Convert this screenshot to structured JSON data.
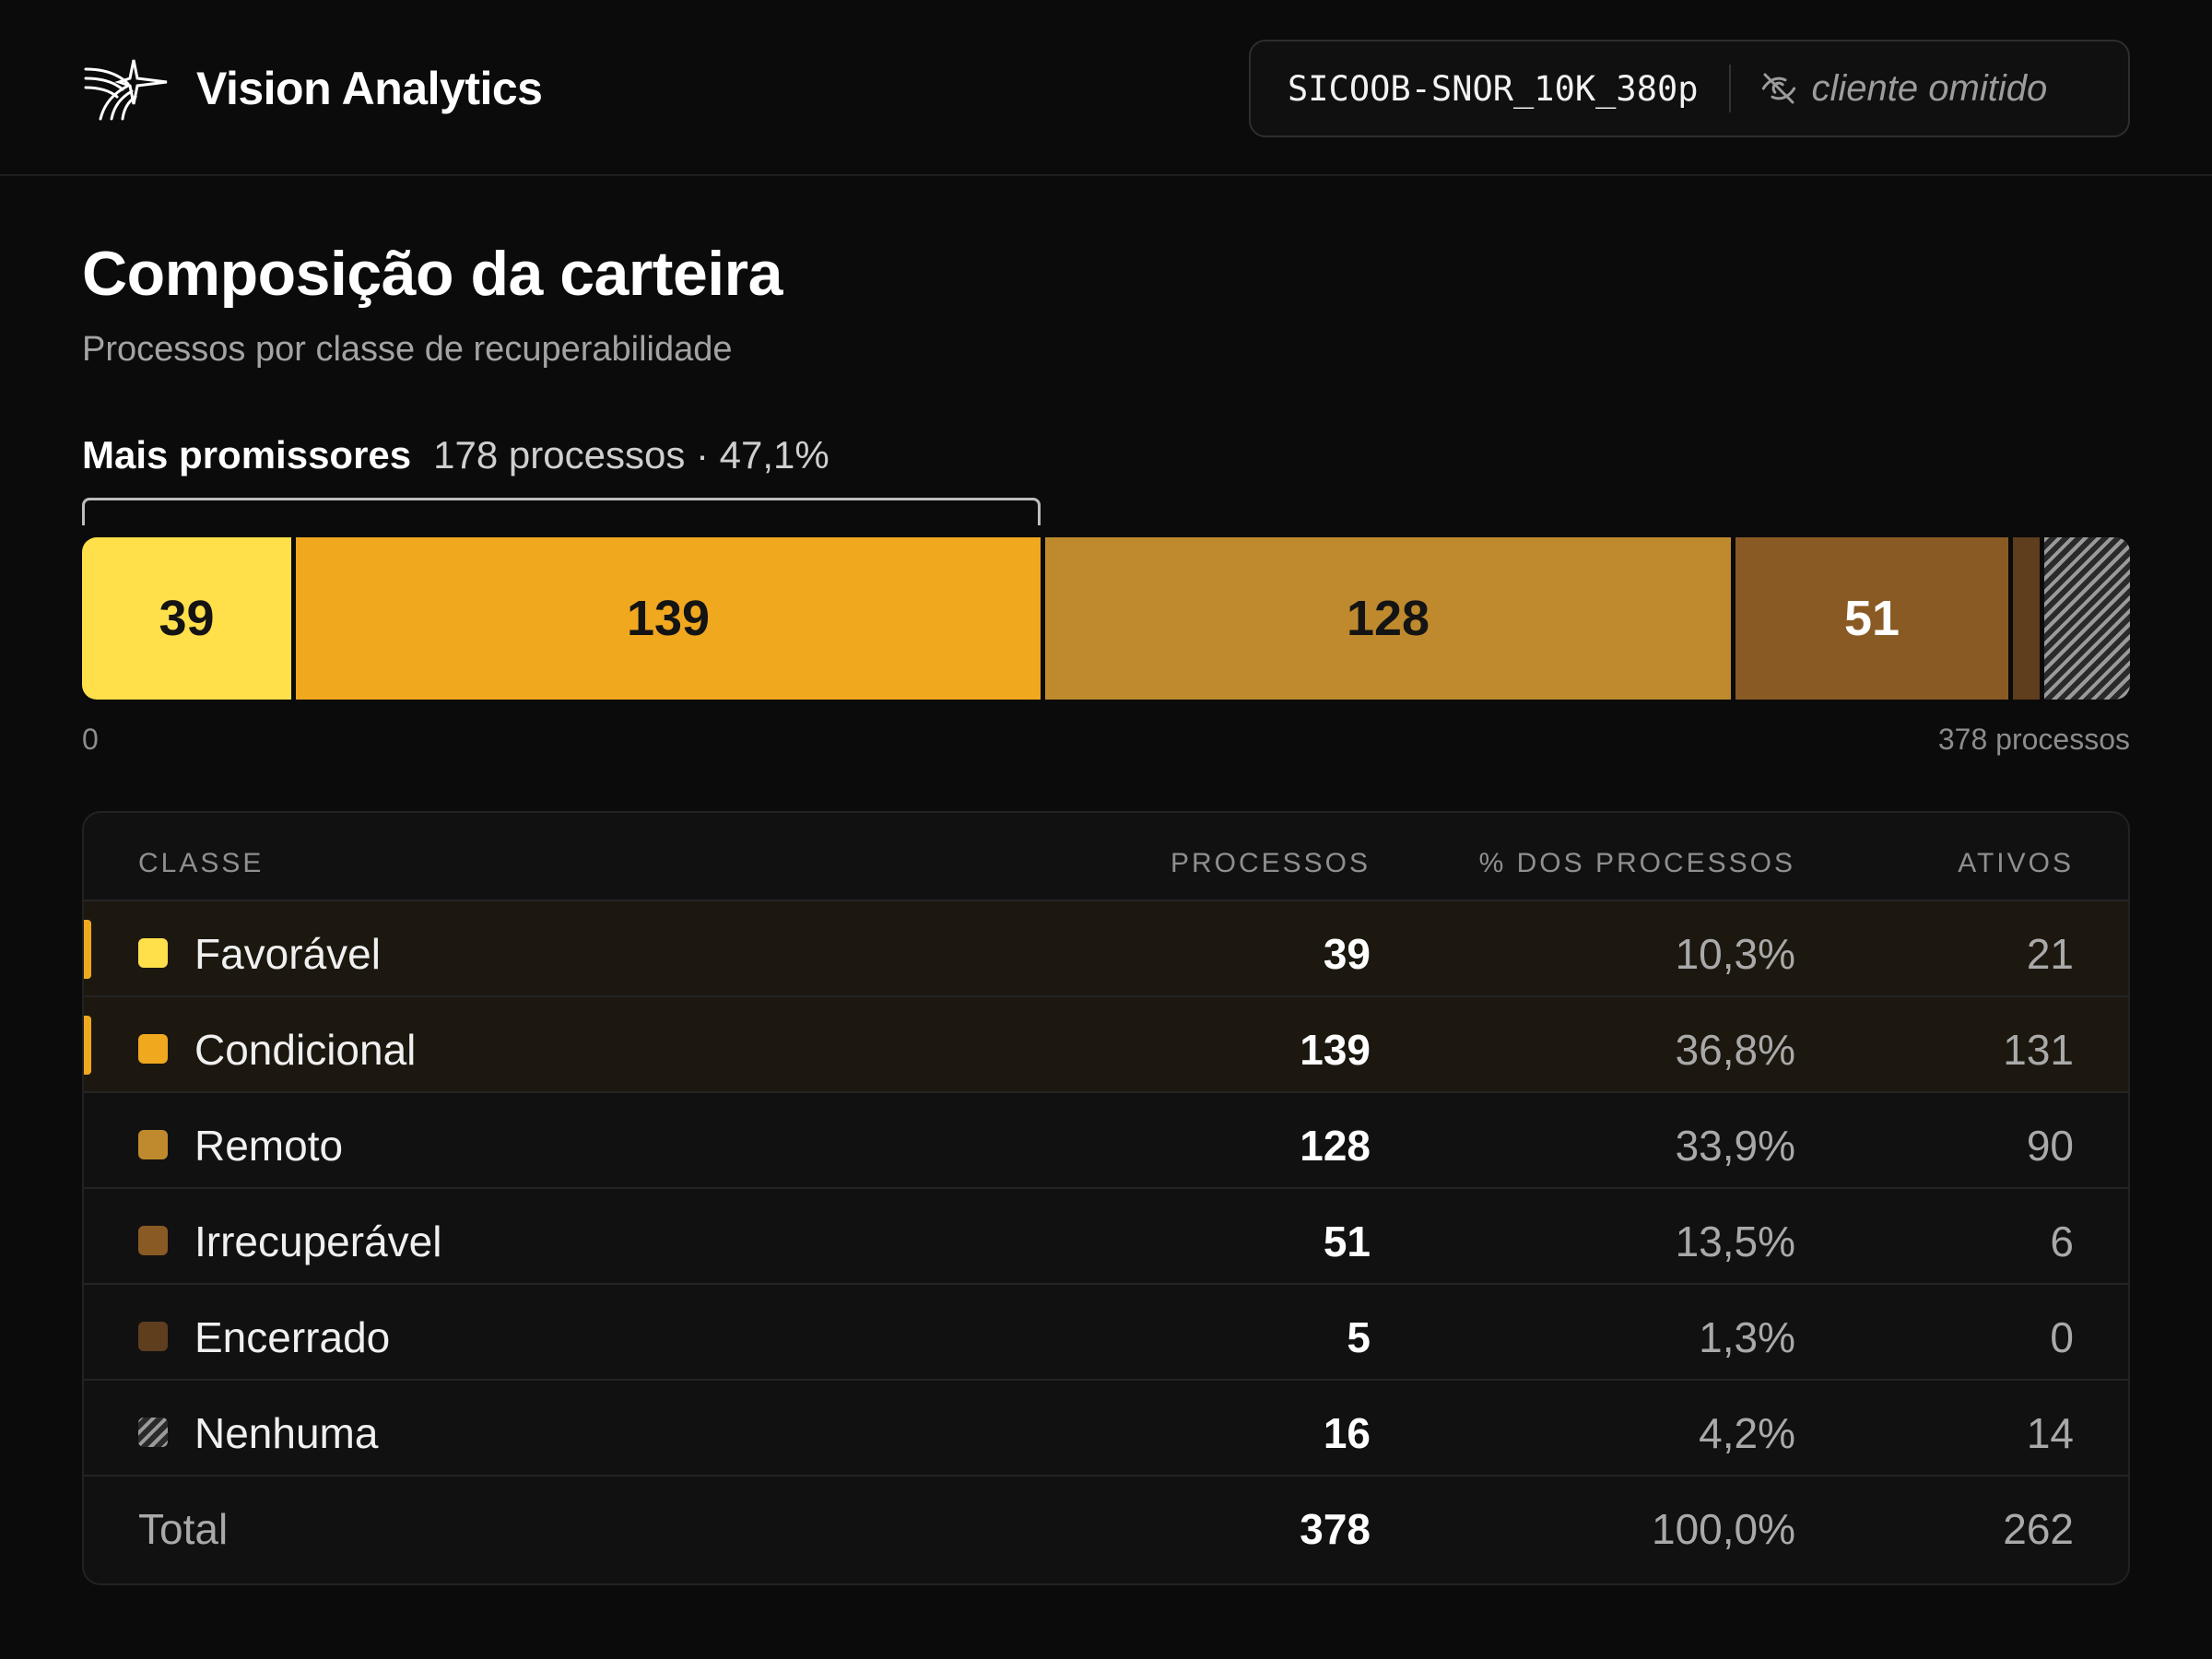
{
  "header": {
    "brand_name": "Vision Analytics",
    "portfolio_code": "SICOOB-SNOR_10K_380p",
    "client_hidden_label": "cliente omitido"
  },
  "title": "Composição da carteira",
  "subtitle": "Processos por classe de recuperabilidade",
  "highlight": {
    "label": "Mais promissores",
    "detail": "178 processos · 47,1%",
    "count": 178,
    "percent": 47.1
  },
  "bar": {
    "min_label": "0",
    "max_label": "378 processos",
    "total": 378
  },
  "colors": {
    "favoravel": "#ffe04a",
    "condicional": "#f0a81f",
    "remoto": "#bf8a2e",
    "irrecuperavel": "#8a5a24",
    "encerrado": "#5e3e1d",
    "nenhuma": "hatched-gray",
    "accent": "#f0a81f"
  },
  "table": {
    "headers": {
      "classe": "CLASSE",
      "processos": "PROCESSOS",
      "pct": "% DOS PROCESSOS",
      "ativos": "ATIVOS"
    },
    "rows": [
      {
        "name": "Favorável",
        "processos": "39",
        "pct": "10,3%",
        "ativos": "21",
        "value": 39,
        "color": "#ffe04a",
        "bar_label": "39",
        "highlighted": true
      },
      {
        "name": "Condicional",
        "processos": "139",
        "pct": "36,8%",
        "ativos": "131",
        "value": 139,
        "color": "#f0a81f",
        "bar_label": "139",
        "highlighted": true
      },
      {
        "name": "Remoto",
        "processos": "128",
        "pct": "33,9%",
        "ativos": "90",
        "value": 128,
        "color": "#bf8a2e",
        "bar_label": "128",
        "highlighted": false
      },
      {
        "name": "Irrecuperável",
        "processos": "51",
        "pct": "13,5%",
        "ativos": "6",
        "value": 51,
        "color": "#8a5a24",
        "bar_label": "51",
        "highlighted": false
      },
      {
        "name": "Encerrado",
        "processos": "5",
        "pct": "1,3%",
        "ativos": "0",
        "value": 5,
        "color": "#5e3e1d",
        "bar_label": "",
        "highlighted": false
      },
      {
        "name": "Nenhuma",
        "processos": "16",
        "pct": "4,2%",
        "ativos": "14",
        "value": 16,
        "color": "hatched-gray",
        "bar_label": "",
        "highlighted": false
      }
    ],
    "total": {
      "name": "Total",
      "processos": "378",
      "pct": "100,0%",
      "ativos": "262"
    }
  }
}
